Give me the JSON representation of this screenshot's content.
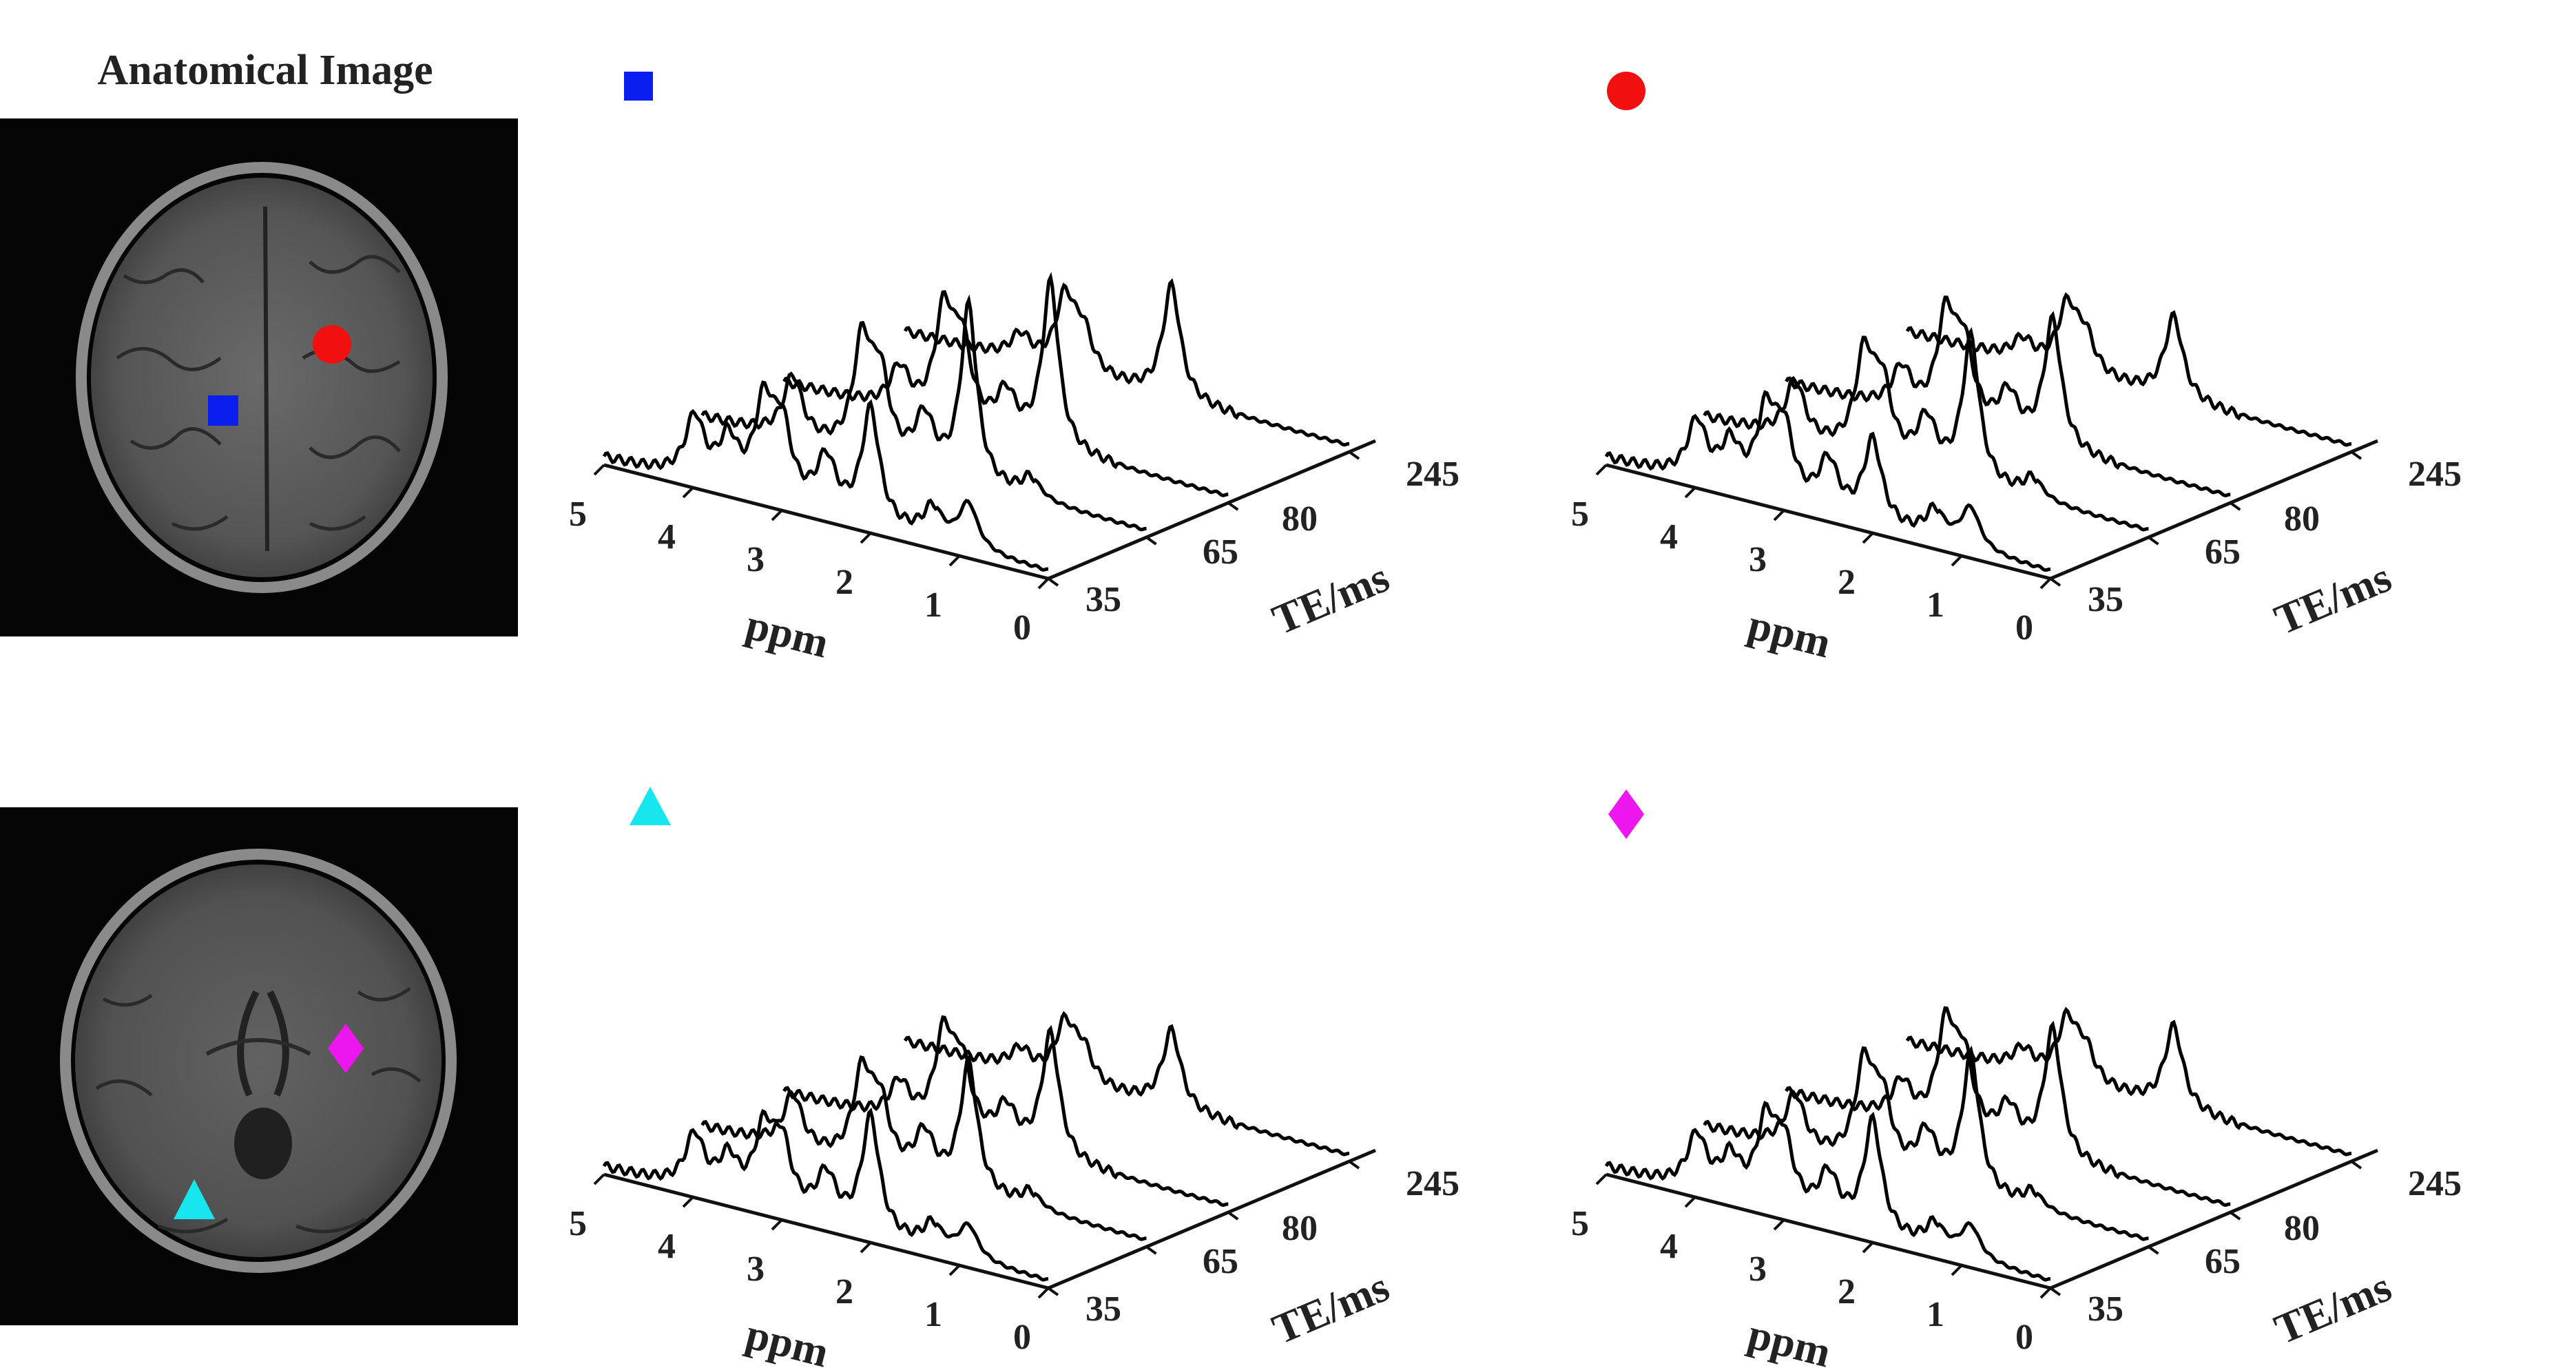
{
  "figure_title": "Anatomical Image",
  "markers": {
    "square": {
      "color": "#0a1ef0",
      "icon": "square-marker-icon"
    },
    "circle": {
      "color": "#f01010",
      "icon": "circle-marker-icon"
    },
    "triangle": {
      "color": "#18e6ee",
      "icon": "triangle-marker-icon"
    },
    "diamond": {
      "color": "#ee16ee",
      "icon": "diamond-marker-icon"
    }
  },
  "mri_images": [
    {
      "label": "axial brain MRI slice (upper)",
      "markers": [
        "square",
        "circle"
      ]
    },
    {
      "label": "axial brain MRI slice (lower)",
      "markers": [
        "triangle",
        "diamond"
      ]
    }
  ],
  "chart_data": [
    {
      "type": "line",
      "marker": "square",
      "xlabel": "ppm",
      "ylabel": "TE/ms",
      "x_ticks": [
        "5",
        "4",
        "3",
        "2",
        "1",
        "0"
      ],
      "te_ticks": [
        "35",
        "65",
        "80",
        "245"
      ],
      "xlim": [
        5.0,
        0.0
      ],
      "series": [
        {
          "name": "35",
          "peaks": [
            {
              "ppm": 3.98,
              "a": 0.3
            },
            {
              "ppm": 3.6,
              "a": 0.22
            },
            {
              "ppm": 3.2,
              "a": 0.42
            },
            {
              "ppm": 3.0,
              "a": 0.34
            },
            {
              "ppm": 2.5,
              "a": 0.25
            },
            {
              "ppm": 2.0,
              "a": 0.55
            },
            {
              "ppm": 1.3,
              "a": 0.15
            },
            {
              "ppm": 0.9,
              "a": 0.22
            }
          ]
        },
        {
          "name": "65",
          "peaks": [
            {
              "ppm": 3.98,
              "a": 0.3
            },
            {
              "ppm": 3.2,
              "a": 0.52
            },
            {
              "ppm": 3.0,
              "a": 0.38
            },
            {
              "ppm": 2.5,
              "a": 0.25
            },
            {
              "ppm": 2.0,
              "a": 0.85
            },
            {
              "ppm": 1.3,
              "a": 0.1
            }
          ]
        },
        {
          "name": "80",
          "peaks": [
            {
              "ppm": 3.7,
              "a": 0.2
            },
            {
              "ppm": 3.2,
              "a": 0.5
            },
            {
              "ppm": 3.0,
              "a": 0.38
            },
            {
              "ppm": 2.5,
              "a": 0.2
            },
            {
              "ppm": 2.0,
              "a": 0.8
            }
          ]
        },
        {
          "name": "245",
          "peaks": [
            {
              "ppm": 3.7,
              "a": 0.12
            },
            {
              "ppm": 3.2,
              "a": 0.34
            },
            {
              "ppm": 3.0,
              "a": 0.2
            },
            {
              "ppm": 2.0,
              "a": 0.55
            }
          ]
        }
      ]
    },
    {
      "type": "line",
      "marker": "circle",
      "xlabel": "ppm",
      "ylabel": "TE/ms",
      "x_ticks": [
        "5",
        "4",
        "3",
        "2",
        "1",
        "0"
      ],
      "te_ticks": [
        "35",
        "65",
        "80",
        "245"
      ],
      "xlim": [
        5.0,
        0.0
      ],
      "series": [
        {
          "name": "35",
          "peaks": [
            {
              "ppm": 3.98,
              "a": 0.28
            },
            {
              "ppm": 3.6,
              "a": 0.2
            },
            {
              "ppm": 3.2,
              "a": 0.38
            },
            {
              "ppm": 3.0,
              "a": 0.32
            },
            {
              "ppm": 2.5,
              "a": 0.24
            },
            {
              "ppm": 2.0,
              "a": 0.4
            },
            {
              "ppm": 1.3,
              "a": 0.14
            },
            {
              "ppm": 0.9,
              "a": 0.2
            }
          ]
        },
        {
          "name": "65",
          "peaks": [
            {
              "ppm": 3.98,
              "a": 0.28
            },
            {
              "ppm": 3.2,
              "a": 0.46
            },
            {
              "ppm": 3.0,
              "a": 0.34
            },
            {
              "ppm": 2.5,
              "a": 0.24
            },
            {
              "ppm": 2.0,
              "a": 0.7
            },
            {
              "ppm": 1.3,
              "a": 0.1
            }
          ]
        },
        {
          "name": "80",
          "peaks": [
            {
              "ppm": 3.7,
              "a": 0.2
            },
            {
              "ppm": 3.2,
              "a": 0.48
            },
            {
              "ppm": 3.0,
              "a": 0.36
            },
            {
              "ppm": 2.5,
              "a": 0.2
            },
            {
              "ppm": 2.0,
              "a": 0.62
            }
          ]
        },
        {
          "name": "245",
          "peaks": [
            {
              "ppm": 3.7,
              "a": 0.1
            },
            {
              "ppm": 3.2,
              "a": 0.3
            },
            {
              "ppm": 3.0,
              "a": 0.18
            },
            {
              "ppm": 2.0,
              "a": 0.4
            }
          ]
        }
      ]
    },
    {
      "type": "line",
      "marker": "triangle",
      "xlabel": "ppm",
      "ylabel": "TE/ms",
      "x_ticks": [
        "5",
        "4",
        "3",
        "2",
        "1",
        "0"
      ],
      "te_ticks": [
        "35",
        "65",
        "80",
        "245"
      ],
      "xlim": [
        5.0,
        0.0
      ],
      "series": [
        {
          "name": "35",
          "peaks": [
            {
              "ppm": 3.98,
              "a": 0.26
            },
            {
              "ppm": 3.6,
              "a": 0.18
            },
            {
              "ppm": 3.2,
              "a": 0.34
            },
            {
              "ppm": 3.0,
              "a": 0.3
            },
            {
              "ppm": 2.5,
              "a": 0.22
            },
            {
              "ppm": 2.0,
              "a": 0.56
            },
            {
              "ppm": 1.3,
              "a": 0.12
            },
            {
              "ppm": 0.9,
              "a": 0.16
            }
          ]
        },
        {
          "name": "65",
          "peaks": [
            {
              "ppm": 3.98,
              "a": 0.26
            },
            {
              "ppm": 3.2,
              "a": 0.42
            },
            {
              "ppm": 3.0,
              "a": 0.3
            },
            {
              "ppm": 2.5,
              "a": 0.22
            },
            {
              "ppm": 2.0,
              "a": 0.62
            },
            {
              "ppm": 1.3,
              "a": 0.08
            }
          ]
        },
        {
          "name": "80",
          "peaks": [
            {
              "ppm": 3.7,
              "a": 0.18
            },
            {
              "ppm": 3.2,
              "a": 0.44
            },
            {
              "ppm": 3.0,
              "a": 0.32
            },
            {
              "ppm": 2.5,
              "a": 0.18
            },
            {
              "ppm": 2.0,
              "a": 0.6
            }
          ]
        },
        {
          "name": "245",
          "peaks": [
            {
              "ppm": 3.7,
              "a": 0.1
            },
            {
              "ppm": 3.2,
              "a": 0.26
            },
            {
              "ppm": 3.0,
              "a": 0.16
            },
            {
              "ppm": 2.0,
              "a": 0.38
            }
          ]
        }
      ]
    },
    {
      "type": "line",
      "marker": "diamond",
      "xlabel": "ppm",
      "ylabel": "TE/ms",
      "x_ticks": [
        "5",
        "4",
        "3",
        "2",
        "1",
        "0"
      ],
      "te_ticks": [
        "35",
        "65",
        "80",
        "245"
      ],
      "xlim": [
        5.0,
        0.0
      ],
      "series": [
        {
          "name": "35",
          "peaks": [
            {
              "ppm": 3.98,
              "a": 0.26
            },
            {
              "ppm": 3.6,
              "a": 0.18
            },
            {
              "ppm": 3.2,
              "a": 0.38
            },
            {
              "ppm": 3.0,
              "a": 0.3
            },
            {
              "ppm": 2.5,
              "a": 0.22
            },
            {
              "ppm": 2.0,
              "a": 0.54
            },
            {
              "ppm": 1.3,
              "a": 0.12
            },
            {
              "ppm": 0.9,
              "a": 0.16
            }
          ]
        },
        {
          "name": "65",
          "peaks": [
            {
              "ppm": 3.98,
              "a": 0.26
            },
            {
              "ppm": 3.2,
              "a": 0.46
            },
            {
              "ppm": 3.0,
              "a": 0.32
            },
            {
              "ppm": 2.5,
              "a": 0.22
            },
            {
              "ppm": 2.0,
              "a": 0.66
            },
            {
              "ppm": 1.3,
              "a": 0.08
            }
          ]
        },
        {
          "name": "80",
          "peaks": [
            {
              "ppm": 3.7,
              "a": 0.18
            },
            {
              "ppm": 3.2,
              "a": 0.48
            },
            {
              "ppm": 3.0,
              "a": 0.34
            },
            {
              "ppm": 2.5,
              "a": 0.18
            },
            {
              "ppm": 2.0,
              "a": 0.62
            }
          ]
        },
        {
          "name": "245",
          "peaks": [
            {
              "ppm": 3.7,
              "a": 0.1
            },
            {
              "ppm": 3.2,
              "a": 0.28
            },
            {
              "ppm": 3.0,
              "a": 0.16
            },
            {
              "ppm": 2.0,
              "a": 0.4
            }
          ]
        }
      ]
    }
  ]
}
